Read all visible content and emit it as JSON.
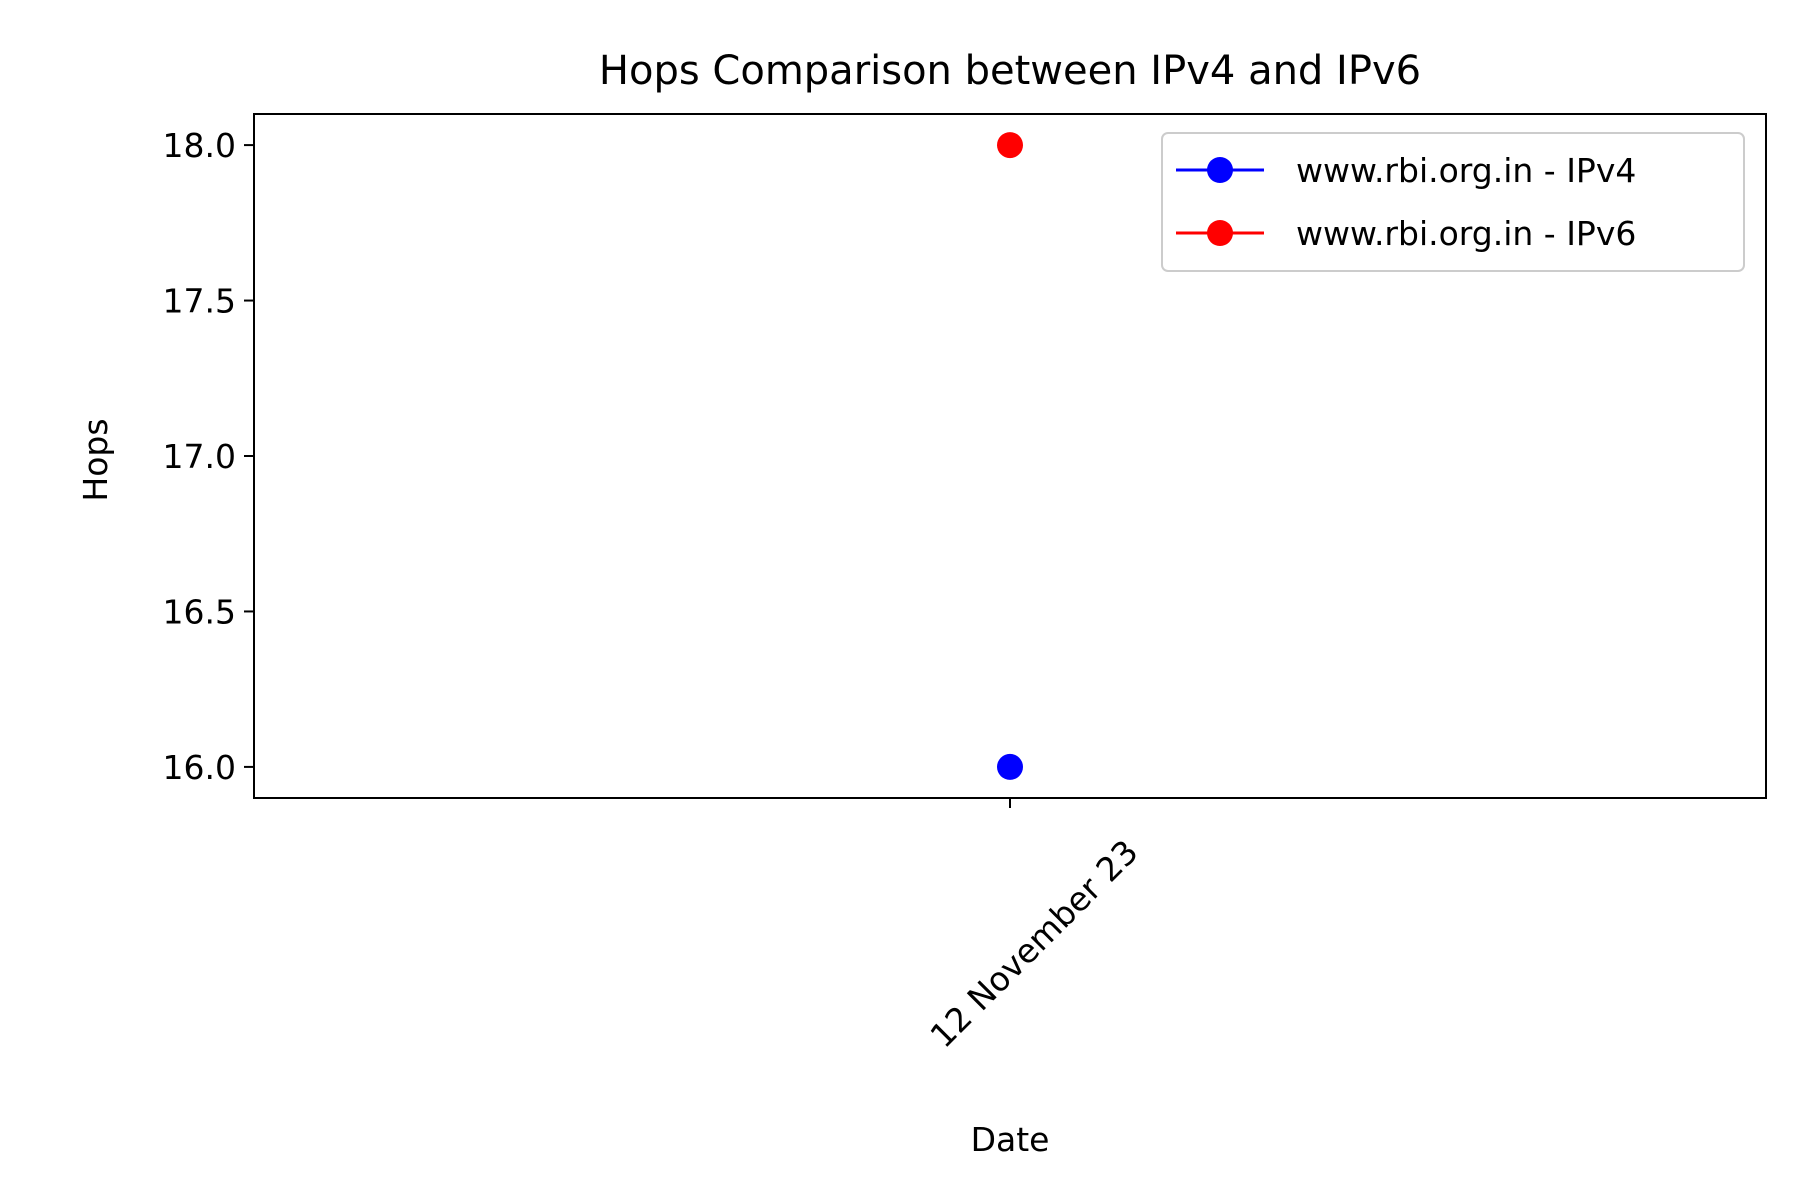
{
  "chart_data": {
    "type": "line",
    "title": "Hops Comparison between IPv4 and IPv6",
    "xlabel": "Date",
    "ylabel": "Hops",
    "x_categories": [
      "12 November 23"
    ],
    "ylim": [
      15.9,
      18.1
    ],
    "yticks": [
      16.0,
      16.5,
      17.0,
      17.5,
      18.0
    ],
    "ytick_labels": [
      "16.0",
      "16.5",
      "17.0",
      "17.5",
      "18.0"
    ],
    "grid": false,
    "legend_position": "top-right",
    "series": [
      {
        "name": "www.rbi.org.in - IPv4",
        "color": "#0000ff",
        "marker": "circle",
        "values": [
          16
        ]
      },
      {
        "name": "www.rbi.org.in - IPv6",
        "color": "#ff0000",
        "marker": "circle",
        "values": [
          18
        ]
      }
    ]
  }
}
